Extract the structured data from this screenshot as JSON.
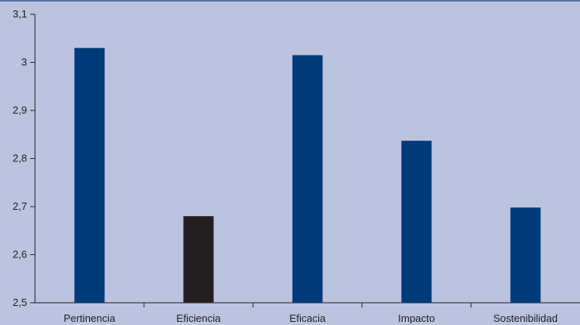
{
  "chart_data": {
    "type": "bar",
    "categories": [
      "Pertinencia",
      "Eficiencia",
      "Eficacia",
      "Impacto",
      "Sostenibilidad"
    ],
    "values": [
      3.03,
      2.68,
      3.015,
      2.837,
      2.698
    ],
    "ylim": [
      2.5,
      3.1
    ],
    "yticks": [
      2.5,
      2.6,
      2.7,
      2.8,
      2.9,
      3.0,
      3.1
    ],
    "ytick_labels": [
      "2,5",
      "2,6",
      "2,7",
      "2,8",
      "2,9",
      "3",
      "3,1"
    ],
    "bar_colors": [
      "#003a78",
      "#231f20",
      "#003a78",
      "#003a78",
      "#003a78"
    ],
    "title": "",
    "xlabel": "",
    "ylabel": "",
    "grid": false,
    "background_color": "#bcc3de",
    "frame_color": "#5a6fa6"
  }
}
